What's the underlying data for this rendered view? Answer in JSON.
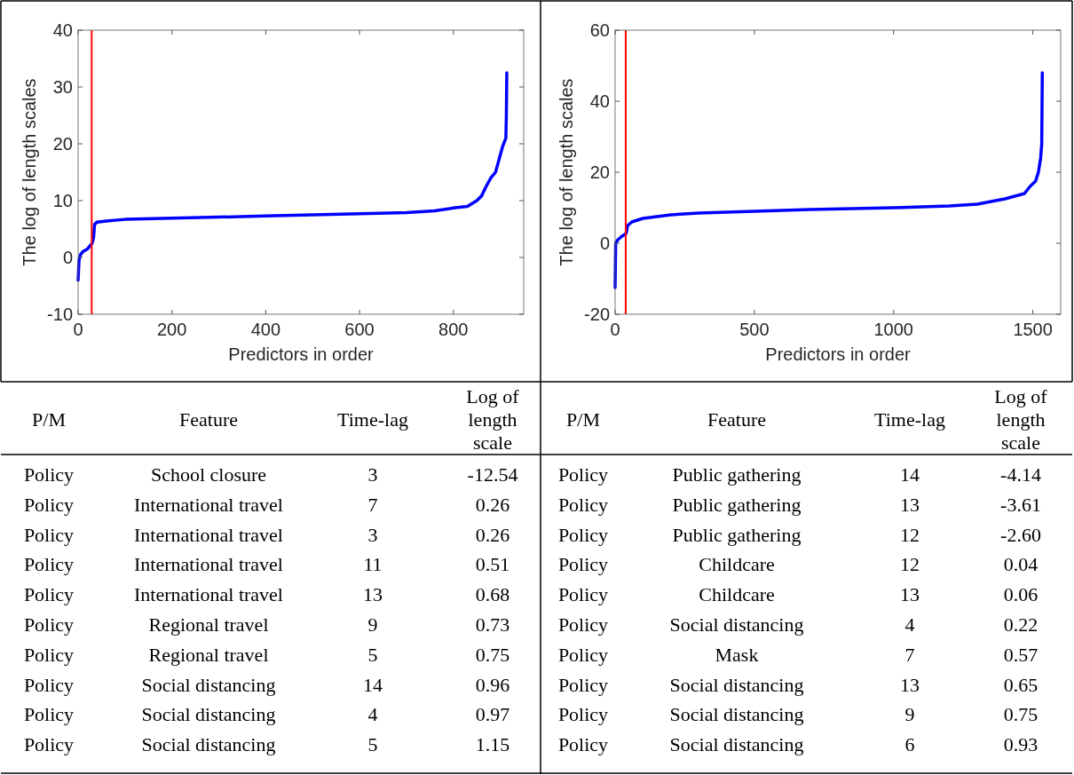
{
  "chart_data": [
    {
      "type": "line",
      "xlabel": "Predictors in order",
      "ylabel": "The log of length scales",
      "xlim": [
        0,
        950
      ],
      "ylim": [
        -10,
        40
      ],
      "xticks": [
        0,
        200,
        400,
        600,
        800
      ],
      "yticks": [
        -10,
        0,
        10,
        20,
        30,
        40
      ],
      "series": [
        {
          "color": "#0000ff",
          "x": [
            0,
            2,
            5,
            10,
            20,
            25,
            30,
            33,
            35,
            40,
            60,
            100,
            200,
            300,
            400,
            500,
            600,
            700,
            760,
            800,
            830,
            850,
            860,
            870,
            880,
            890,
            895,
            900,
            905,
            912,
            913,
            914
          ],
          "values": [
            -4,
            -0.5,
            0.5,
            1,
            1.5,
            2,
            2.5,
            3.5,
            5.8,
            6.2,
            6.4,
            6.7,
            6.9,
            7.1,
            7.3,
            7.5,
            7.7,
            7.9,
            8.2,
            8.7,
            9,
            10,
            10.8,
            12.5,
            14,
            15,
            16.5,
            18,
            19.5,
            21,
            25,
            32.5
          ]
        }
      ],
      "ref_lines": [
        {
          "axis": "x",
          "value": 29,
          "color": "#ff0000"
        }
      ]
    },
    {
      "type": "line",
      "xlabel": "Predictors in order",
      "ylabel": "The log of length scales",
      "xlim": [
        0,
        1600
      ],
      "ylim": [
        -20,
        60
      ],
      "xticks": [
        0,
        500,
        1000,
        1500
      ],
      "yticks": [
        -20,
        0,
        20,
        40,
        60
      ],
      "series": [
        {
          "color": "#0000ff",
          "x": [
            0,
            2,
            10,
            25,
            35,
            40,
            45,
            60,
            100,
            200,
            300,
            500,
            700,
            1000,
            1200,
            1300,
            1400,
            1470,
            1490,
            1510,
            1520,
            1528,
            1532,
            1534
          ],
          "values": [
            -12.5,
            0,
            1,
            2,
            2.5,
            2.8,
            5,
            6,
            7,
            8,
            8.5,
            9,
            9.5,
            10,
            10.5,
            11,
            12.5,
            14,
            16,
            17.5,
            20,
            24,
            28,
            48
          ]
        }
      ],
      "ref_lines": [
        {
          "axis": "x",
          "value": 38,
          "color": "#ff0000"
        }
      ]
    },
    {
      "type": "other",
      "categories": [
        "P/M",
        "Feature",
        "Time-lag",
        "Log of length scale"
      ],
      "cell_labels": [
        [
          "Policy",
          "School closure",
          "3",
          "-12.54"
        ],
        [
          "Policy",
          "International travel",
          "7",
          "0.26"
        ],
        [
          "Policy",
          "International travel",
          "3",
          "0.26"
        ],
        [
          "Policy",
          "International travel",
          "11",
          "0.51"
        ],
        [
          "Policy",
          "International travel",
          "13",
          "0.68"
        ],
        [
          "Policy",
          "Regional travel",
          "9",
          "0.73"
        ],
        [
          "Policy",
          "Regional travel",
          "5",
          "0.75"
        ],
        [
          "Policy",
          "Social distancing",
          "14",
          "0.96"
        ],
        [
          "Policy",
          "Social distancing",
          "4",
          "0.97"
        ],
        [
          "Policy",
          "Social distancing",
          "5",
          "1.15"
        ]
      ]
    },
    {
      "type": "other",
      "categories": [
        "P/M",
        "Feature",
        "Time-lag",
        "Log of length scale"
      ],
      "cell_labels": [
        [
          "Policy",
          "Public gathering",
          "14",
          "-4.14"
        ],
        [
          "Policy",
          "Public gathering",
          "13",
          "-3.61"
        ],
        [
          "Policy",
          "Public gathering",
          "12",
          "-2.60"
        ],
        [
          "Policy",
          "Childcare",
          "12",
          "0.04"
        ],
        [
          "Policy",
          "Childcare",
          "13",
          "0.06"
        ],
        [
          "Policy",
          "Social distancing",
          "4",
          "0.22"
        ],
        [
          "Policy",
          "Mask",
          "7",
          "0.57"
        ],
        [
          "Policy",
          "Social distancing",
          "13",
          "0.65"
        ],
        [
          "Policy",
          "Social distancing",
          "9",
          "0.75"
        ],
        [
          "Policy",
          "Social distancing",
          "6",
          "0.93"
        ]
      ]
    }
  ]
}
